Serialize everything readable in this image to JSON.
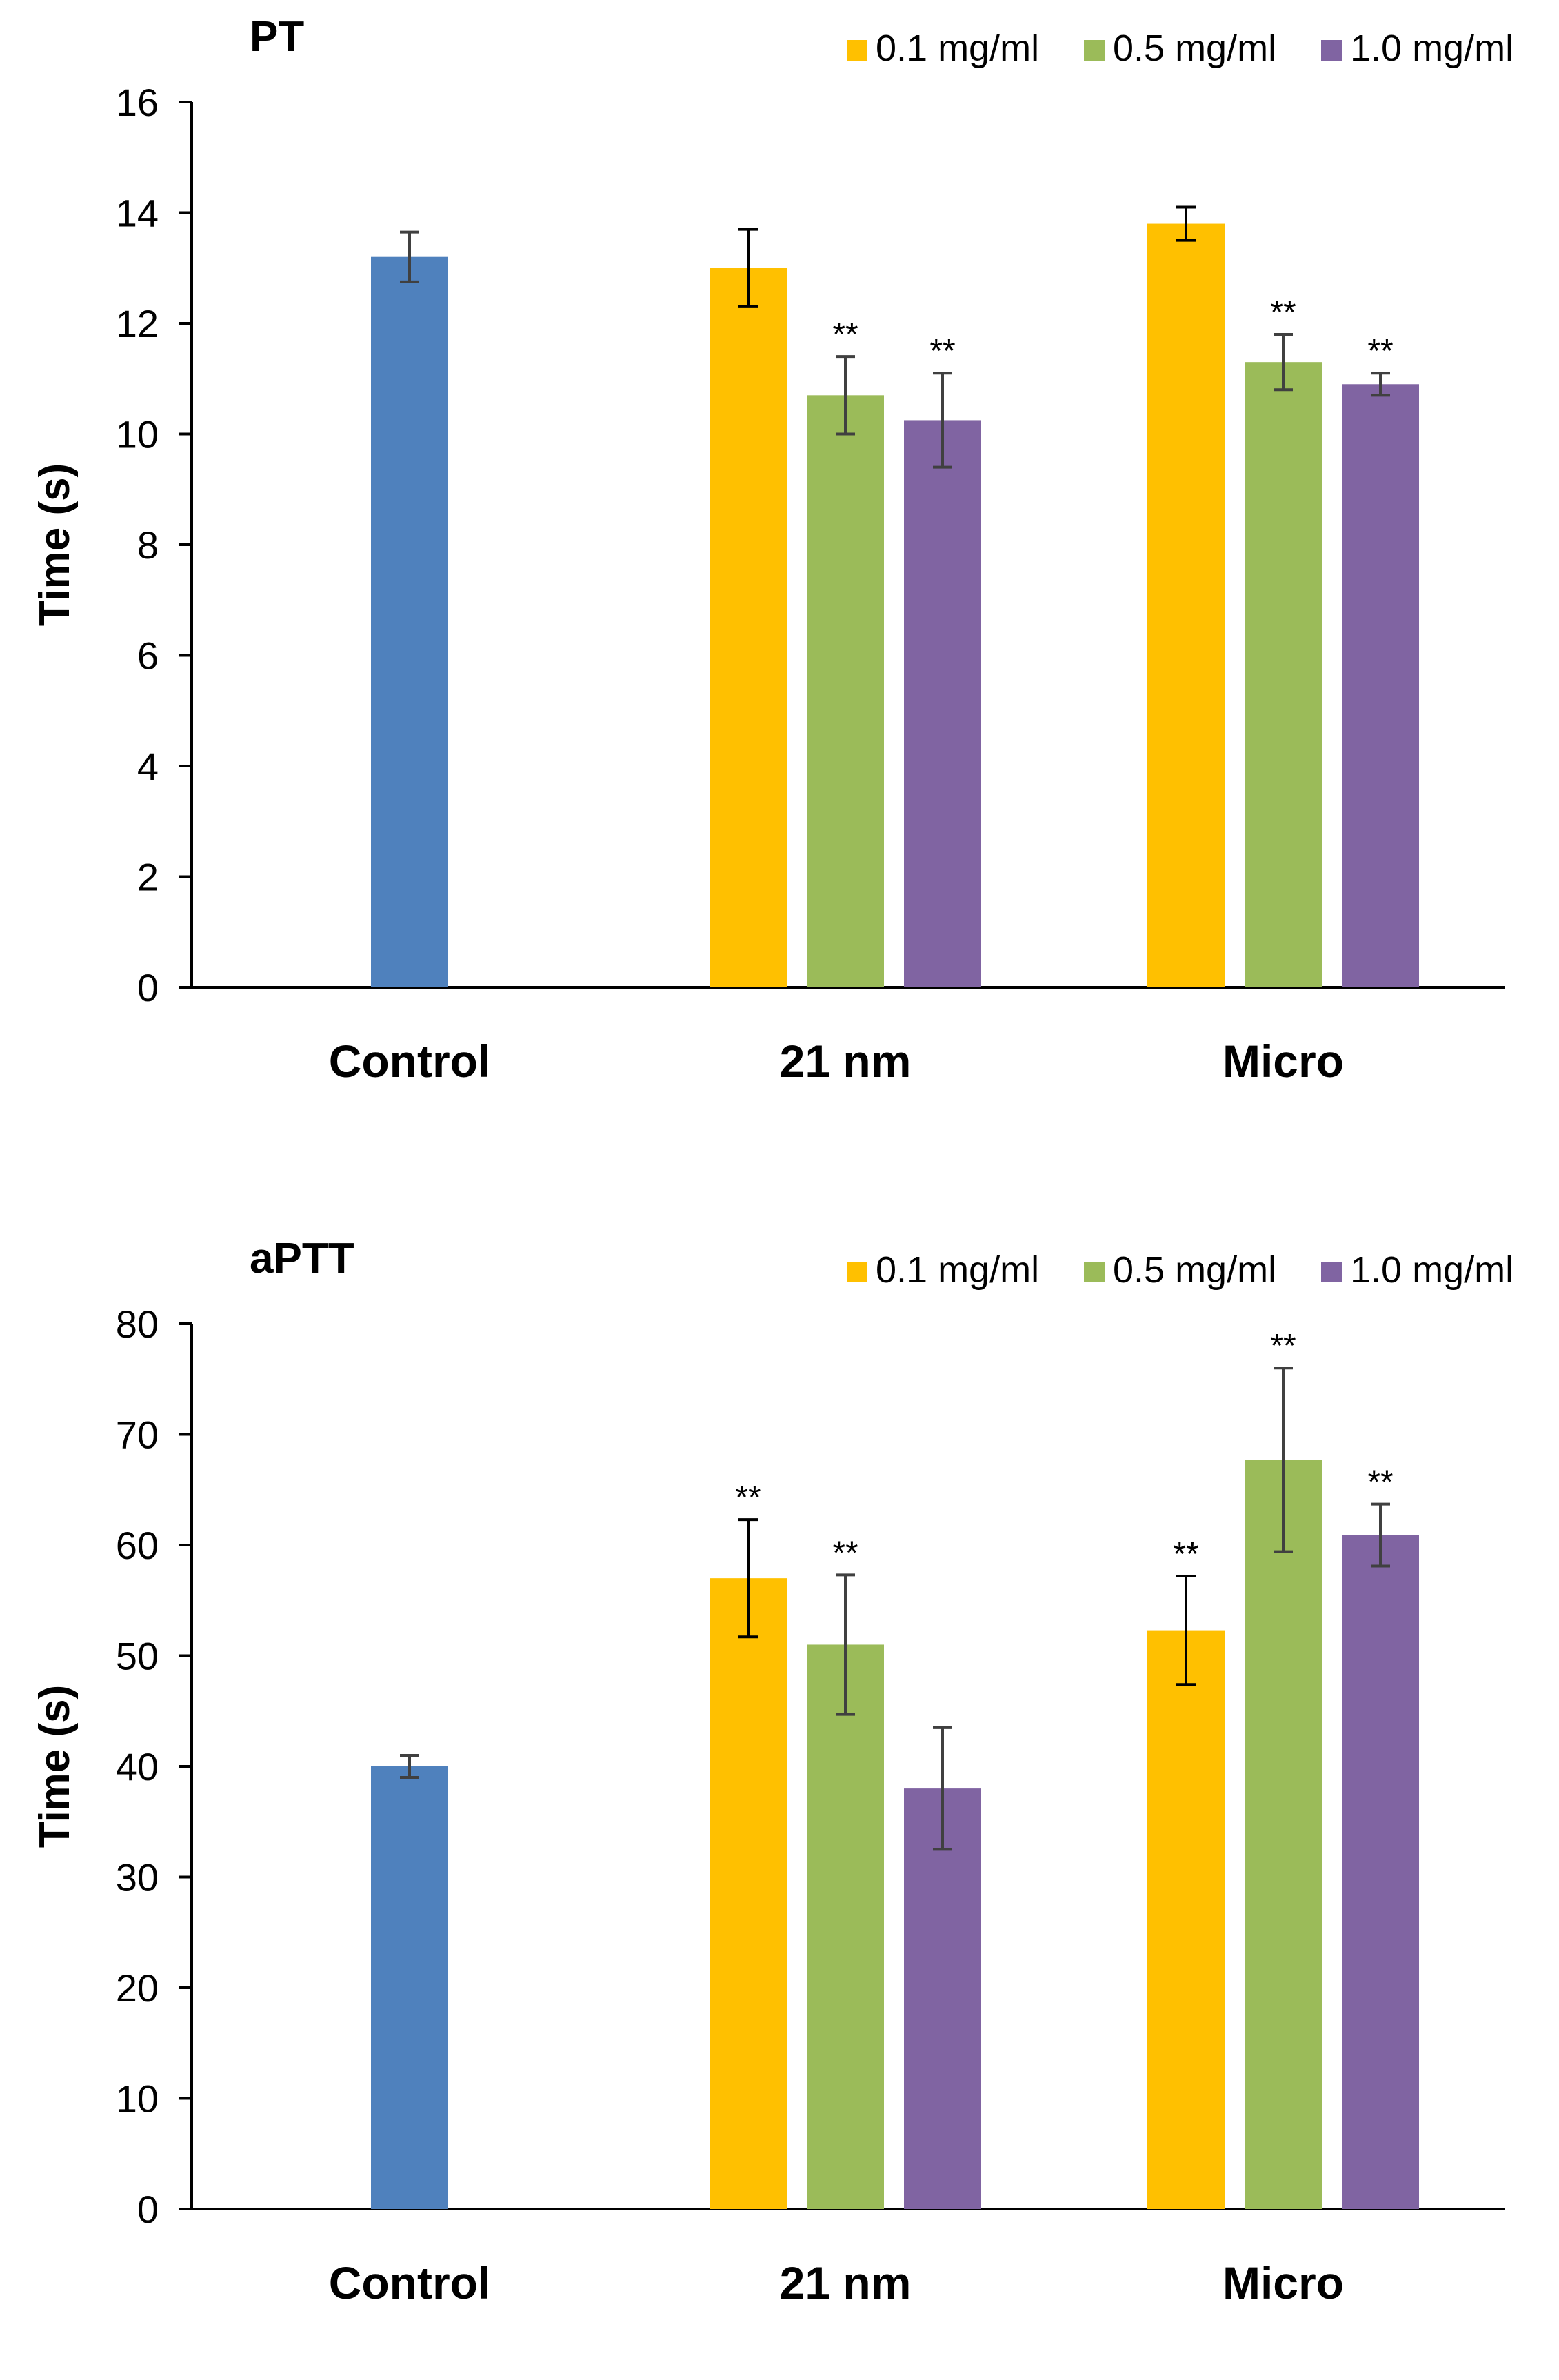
{
  "chart_data": [
    {
      "type": "bar",
      "title": "PT",
      "xlabel": "",
      "ylabel": "Time (s)",
      "ylim": [
        0,
        16
      ],
      "yticks": [
        0,
        2,
        4,
        6,
        8,
        10,
        12,
        14,
        16
      ],
      "categories": [
        "Control",
        "21 nm",
        "Micro"
      ],
      "legend": [
        "0.1 mg/ml",
        "0.5 mg/ml",
        "1.0 mg/ml"
      ],
      "legend_position": "top-right",
      "colors": {
        "control": "#4F81BD",
        "0.1 mg/ml": "#FFC000",
        "0.5 mg/ml": "#9BBB59",
        "1.0 mg/ml": "#8064A2"
      },
      "bars": [
        {
          "category": "Control",
          "series": "control",
          "value": 13.2,
          "error": 0.45,
          "sig": ""
        },
        {
          "category": "21 nm",
          "series": "0.1 mg/ml",
          "value": 13.0,
          "error": 0.7,
          "sig": ""
        },
        {
          "category": "21 nm",
          "series": "0.5 mg/ml",
          "value": 10.7,
          "error": 0.7,
          "sig": "**"
        },
        {
          "category": "21 nm",
          "series": "1.0 mg/ml",
          "value": 10.25,
          "error": 0.85,
          "sig": "**"
        },
        {
          "category": "Micro",
          "series": "0.1 mg/ml",
          "value": 13.8,
          "error": 0.3,
          "sig": ""
        },
        {
          "category": "Micro",
          "series": "0.5 mg/ml",
          "value": 11.3,
          "error": 0.5,
          "sig": "**"
        },
        {
          "category": "Micro",
          "series": "1.0 mg/ml",
          "value": 10.9,
          "error": 0.2,
          "sig": "**"
        }
      ]
    },
    {
      "type": "bar",
      "title": "aPTT",
      "xlabel": "",
      "ylabel": "Time (s)",
      "ylim": [
        0,
        80
      ],
      "yticks": [
        0,
        10,
        20,
        30,
        40,
        50,
        60,
        70,
        80
      ],
      "categories": [
        "Control",
        "21 nm",
        "Micro"
      ],
      "legend": [
        "0.1 mg/ml",
        "0.5 mg/ml",
        "1.0 mg/ml"
      ],
      "legend_position": "top-right",
      "colors": {
        "control": "#4F81BD",
        "0.1 mg/ml": "#FFC000",
        "0.5 mg/ml": "#9BBB59",
        "1.0 mg/ml": "#8064A2"
      },
      "bars": [
        {
          "category": "Control",
          "series": "control",
          "value": 40.0,
          "error": 1.0,
          "sig": ""
        },
        {
          "category": "21 nm",
          "series": "0.1 mg/ml",
          "value": 57.0,
          "error": 5.3,
          "sig": "**"
        },
        {
          "category": "21 nm",
          "series": "0.5 mg/ml",
          "value": 51.0,
          "error": 6.3,
          "sig": "**"
        },
        {
          "category": "21 nm",
          "series": "1.0 mg/ml",
          "value": 38.0,
          "error": 5.5,
          "sig": ""
        },
        {
          "category": "Micro",
          "series": "0.1 mg/ml",
          "value": 52.3,
          "error": 4.9,
          "sig": "**"
        },
        {
          "category": "Micro",
          "series": "0.5 mg/ml",
          "value": 67.7,
          "error": 8.3,
          "sig": "**"
        },
        {
          "category": "Micro",
          "series": "1.0 mg/ml",
          "value": 60.9,
          "error": 2.8,
          "sig": "**"
        }
      ]
    }
  ]
}
